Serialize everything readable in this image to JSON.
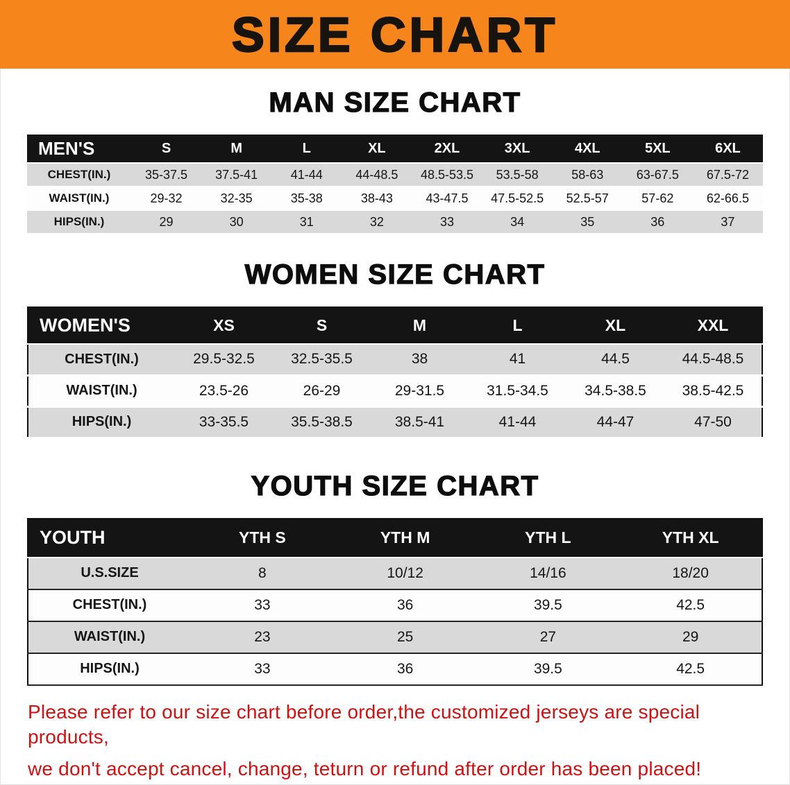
{
  "banner": {
    "title": "SIZE CHART"
  },
  "men": {
    "heading": "MAN SIZE CHART",
    "header": [
      "MEN'S",
      "S",
      "M",
      "L",
      "XL",
      "2XL",
      "3XL",
      "4XL",
      "5XL",
      "6XL"
    ],
    "rows": [
      [
        "CHEST(IN.)",
        "35-37.5",
        "37.5-41",
        "41-44",
        "44-48.5",
        "48.5-53.5",
        "53.5-58",
        "58-63",
        "63-67.5",
        "67.5-72"
      ],
      [
        "WAIST(IN.)",
        "29-32",
        "32-35",
        "35-38",
        "38-43",
        "43-47.5",
        "47.5-52.5",
        "52.5-57",
        "57-62",
        "62-66.5"
      ],
      [
        "HIPS(IN.)",
        "29",
        "30",
        "31",
        "32",
        "33",
        "34",
        "35",
        "36",
        "37"
      ]
    ]
  },
  "women": {
    "heading": "WOMEN SIZE CHART",
    "header": [
      "WOMEN'S",
      "XS",
      "S",
      "M",
      "L",
      "XL",
      "XXL"
    ],
    "rows": [
      [
        "CHEST(IN.)",
        "29.5-32.5",
        "32.5-35.5",
        "38",
        "41",
        "44.5",
        "44.5-48.5"
      ],
      [
        "WAIST(IN.)",
        "23.5-26",
        "26-29",
        "29-31.5",
        "31.5-34.5",
        "34.5-38.5",
        "38.5-42.5"
      ],
      [
        "HIPS(IN.)",
        "33-35.5",
        "35.5-38.5",
        "38.5-41",
        "41-44",
        "44-47",
        "47-50"
      ]
    ]
  },
  "youth": {
    "heading": "YOUTH SIZE CHART",
    "header": [
      "YOUTH",
      "YTH S",
      "YTH M",
      "YTH L",
      "YTH XL"
    ],
    "rows": [
      [
        "U.S.SIZE",
        "8",
        "10/12",
        "14/16",
        "18/20"
      ],
      [
        "CHEST(IN.)",
        "33",
        "36",
        "39.5",
        "42.5"
      ],
      [
        "WAIST(IN.)",
        "23",
        "25",
        "27",
        "29"
      ],
      [
        "HIPS(IN.)",
        "33",
        "36",
        "39.5",
        "42.5"
      ]
    ]
  },
  "disclaimer": {
    "line1": "Please refer to our size chart before order,the customized jerseys are special products,",
    "line2": "we don't accept cancel, change, teturn or refund after order has been placed!",
    "color": "#ce1212"
  },
  "colors": {
    "banner_bg": "#f6861c",
    "table_header_bg": "#141414",
    "row_gray": "#d9d9d9",
    "row_white": "#fdfdfd"
  }
}
